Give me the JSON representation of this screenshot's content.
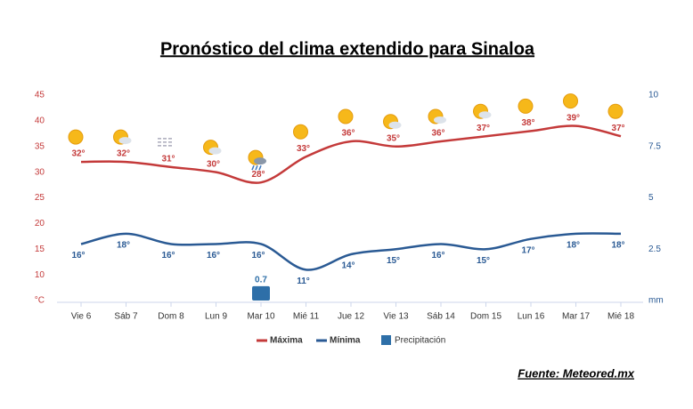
{
  "chart_data": {
    "type": "line",
    "title": "Pronóstico del clima extendido para Sinaloa",
    "source": "Fuente: Meteored.mx",
    "categories": [
      "Vie 6",
      "Sáb 7",
      "Dom 8",
      "Lun 9",
      "Mar 10",
      "Mié 11",
      "Jue 12",
      "Vie 13",
      "Sáb 14",
      "Dom 15",
      "Lun 16",
      "Mar 17",
      "Mié 18"
    ],
    "series": [
      {
        "name": "Máxima",
        "color": "#c43a3a",
        "type": "line",
        "values": [
          32,
          32,
          31,
          30,
          28,
          33,
          36,
          35,
          36,
          37,
          38,
          39,
          37
        ],
        "value_labels": [
          "32°",
          "32°",
          "31°",
          "30°",
          "28°",
          "33°",
          "36°",
          "35°",
          "36°",
          "37°",
          "38°",
          "39°",
          "37°"
        ]
      },
      {
        "name": "Mínima",
        "color": "#2a5a94",
        "type": "line",
        "values": [
          16,
          18,
          16,
          16,
          16,
          11,
          14,
          15,
          16,
          15,
          17,
          18,
          18
        ],
        "value_labels": [
          "16°",
          "18°",
          "16°",
          "16°",
          "16°",
          "11°",
          "14°",
          "15°",
          "16°",
          "15°",
          "17°",
          "18°",
          "18°"
        ]
      },
      {
        "name": "Precipitación",
        "color": "#2e6fa8",
        "type": "bar",
        "axis": "y2",
        "values": [
          null,
          null,
          null,
          null,
          0.7,
          null,
          null,
          null,
          null,
          null,
          null,
          null,
          null
        ]
      }
    ],
    "ylim": [
      5,
      45
    ],
    "yticks": [
      {
        "value": 5,
        "label": "°C"
      },
      10,
      15,
      20,
      25,
      30,
      35,
      40,
      45
    ],
    "y2lim": [
      0,
      10
    ],
    "y2ticks": [
      {
        "value": 0,
        "label": "mm"
      },
      2.5,
      5,
      7.5,
      10
    ],
    "grid": false
  }
}
